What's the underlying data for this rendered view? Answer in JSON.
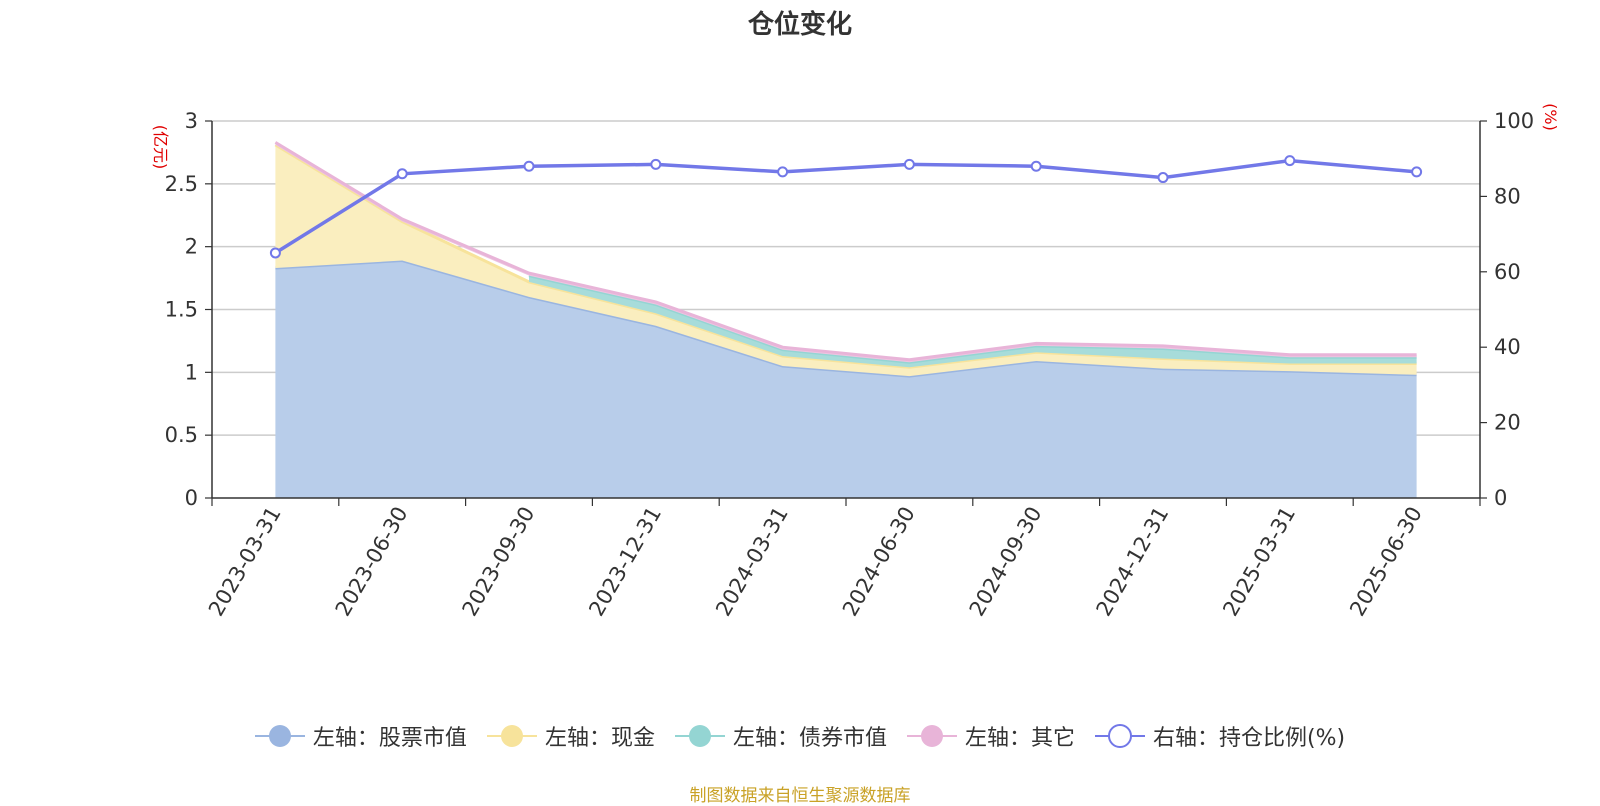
{
  "chart_data": {
    "type": "area",
    "title": "仓位变化",
    "categories": [
      "2023-03-31",
      "2023-06-30",
      "2023-09-30",
      "2023-12-31",
      "2024-03-31",
      "2024-06-30",
      "2024-09-30",
      "2024-12-31",
      "2025-03-31",
      "2025-06-30"
    ],
    "left_axis": {
      "unit": "(亿元)",
      "ylim": [
        0,
        3
      ],
      "ticks": [
        "0",
        "0.5",
        "1",
        "1.5",
        "2",
        "2.5",
        "3"
      ]
    },
    "right_axis": {
      "unit": "(%)",
      "ylim": [
        0,
        100
      ],
      "ticks": [
        "0",
        "20",
        "40",
        "60",
        "80",
        "100"
      ]
    },
    "stacked_series": [
      {
        "name": "左轴：股票市值",
        "color": "#9ab5e0",
        "fill": "#b8cdea",
        "values": [
          1.83,
          1.89,
          1.6,
          1.37,
          1.05,
          0.97,
          1.09,
          1.03,
          1.01,
          0.98
        ]
      },
      {
        "name": "左轴：现金",
        "color": "#f7e39b",
        "fill": "#faeebf",
        "values": [
          0.98,
          0.31,
          0.12,
          0.1,
          0.08,
          0.07,
          0.07,
          0.08,
          0.06,
          0.09
        ]
      },
      {
        "name": "左轴：债券市值",
        "color": "#94d5d3",
        "fill": "#a7dcda",
        "values": [
          0.0,
          0.0,
          0.05,
          0.07,
          0.05,
          0.04,
          0.05,
          0.08,
          0.05,
          0.05
        ]
      },
      {
        "name": "左轴：其它",
        "color": "#e8b4d8",
        "fill": "#eec4e1",
        "values": [
          0.02,
          0.02,
          0.02,
          0.02,
          0.02,
          0.02,
          0.02,
          0.02,
          0.02,
          0.02
        ]
      }
    ],
    "line_series": {
      "name": "右轴：持仓比例(%)",
      "color": "#7278e8",
      "values": [
        65,
        86,
        88,
        88.5,
        86.5,
        88.5,
        88,
        85,
        89.5,
        86.5
      ]
    },
    "grid": true,
    "legend_position": "bottom"
  },
  "legend": [
    {
      "label": "左轴：股票市值",
      "color": "#9ab5e0",
      "hollow": false
    },
    {
      "label": "左轴：现金",
      "color": "#f7e39b",
      "hollow": false
    },
    {
      "label": "左轴：债券市值",
      "color": "#94d5d3",
      "hollow": false
    },
    {
      "label": "左轴：其它",
      "color": "#e8b4d8",
      "hollow": false
    },
    {
      "label": "右轴：持仓比例(%)",
      "color": "#7278e8",
      "hollow": true
    }
  ],
  "source": "制图数据来自恒生聚源数据库"
}
